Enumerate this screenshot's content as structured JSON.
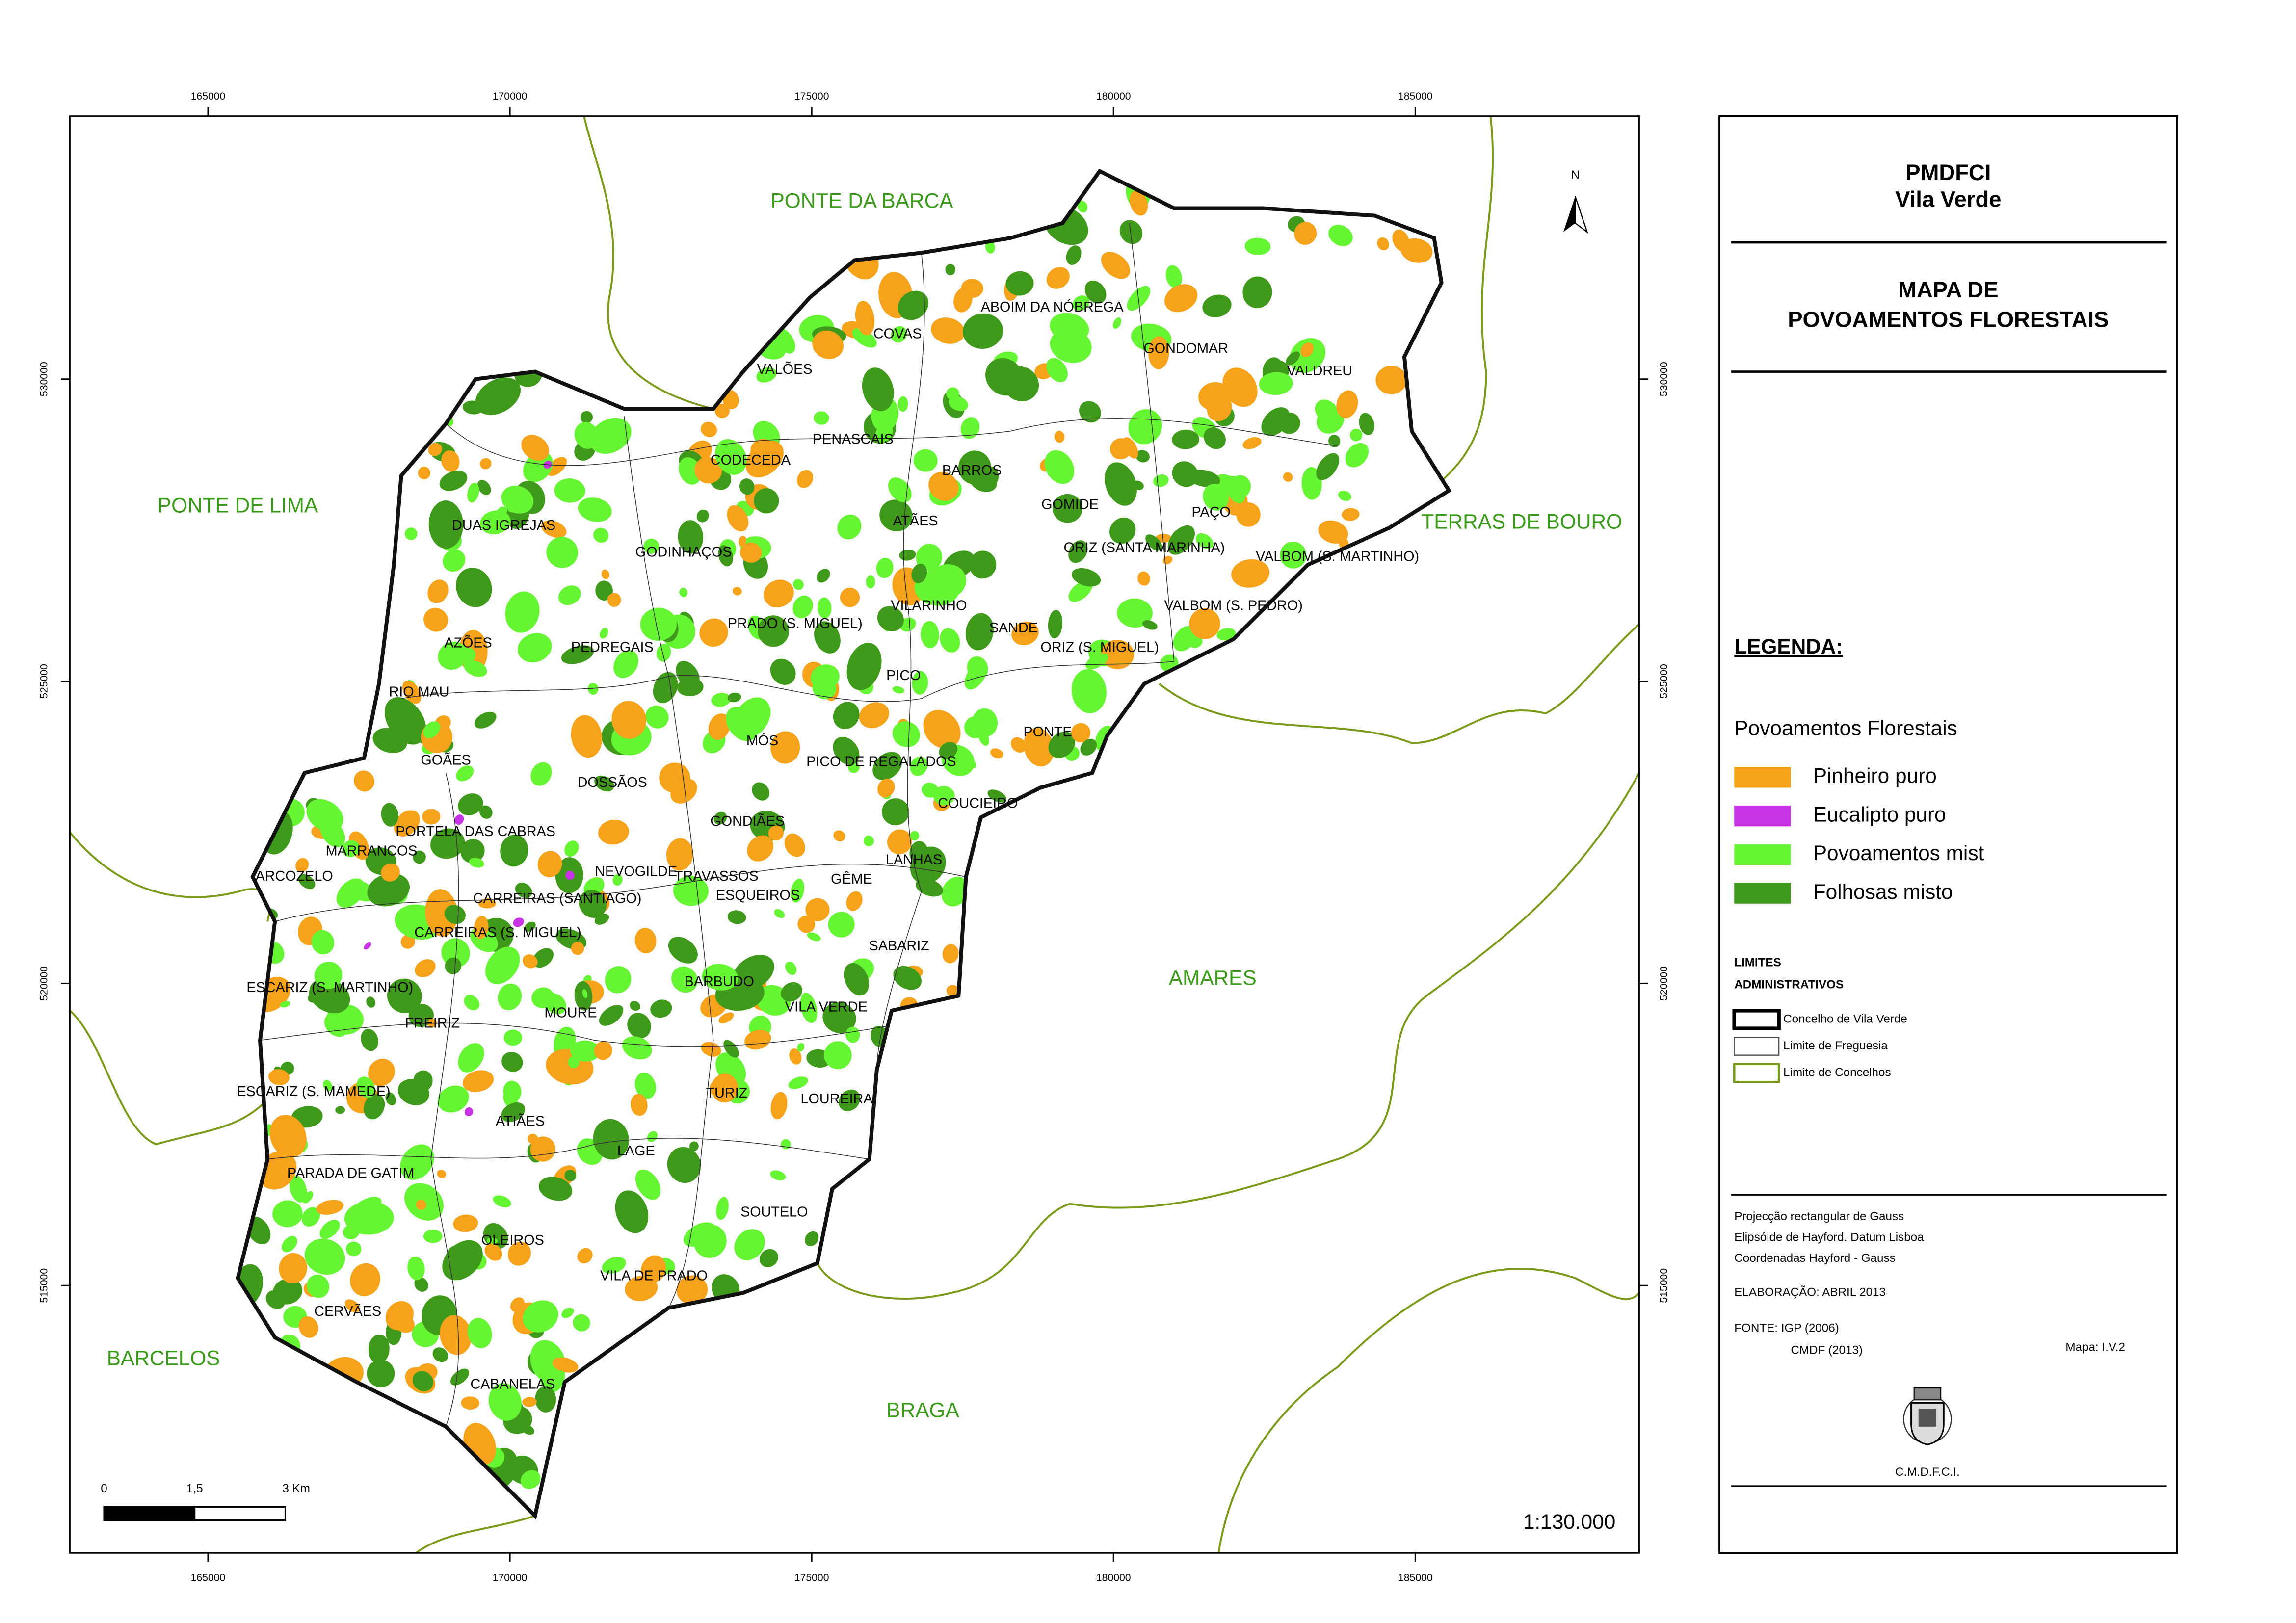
{
  "map": {
    "x_ticks": [
      165000,
      170000,
      175000,
      180000,
      185000
    ],
    "y_ticks": [
      530000,
      525000,
      520000,
      515000
    ],
    "north": "N",
    "neighbors": [
      "PONTE DA BARCA",
      "PONTE DE LIMA",
      "TERRAS DE BOURO",
      "AMARES",
      "BARCELOS",
      "BRAGA"
    ],
    "parishes": [
      "ABOIM DA NÓBREGA",
      "COVAS",
      "VALÕES",
      "GONDOMAR",
      "VALDREU",
      "PENASCAIS",
      "CODECEDA",
      "BARROS",
      "GOMIDE",
      "PAÇO",
      "DUAS IGREJAS",
      "ATÃES",
      "ORIZ (SANTA MARINHA)",
      "VALBOM (S. MARTINHO)",
      "GODINHAÇOS",
      "VILARINHO",
      "VALBOM (S. PEDRO)",
      "PRADO (S. MIGUEL)",
      "SANDE",
      "AZÕES",
      "PEDREGAIS",
      "ORIZ (S. MIGUEL)",
      "PICO",
      "RIO MAU",
      "MÓS",
      "PONTE",
      "GOÃES",
      "PICO DE REGALADOS",
      "DOSSÃOS",
      "COUCIEIRO",
      "GONDIÃES",
      "PORTELA DAS CABRAS",
      "MARRANCOS",
      "NEVOGILDE",
      "LANHAS",
      "TRAVASSOS",
      "GÊME",
      "ARCOZELO",
      "CARREIRAS (SANTIAGO)",
      "ESQUEIROS",
      "SABARIZ",
      "CARREIRAS (S. MIGUEL)",
      "ESCARIZ (S. MARTINHO)",
      "BARBUDO",
      "MOURE",
      "VILA VERDE",
      "FREIRIZ",
      "ESCARIZ (S. MAMEDE)",
      "TURIZ",
      "LOUREIRA",
      "ATIÃES",
      "LAGE",
      "PARADA DE GATIM",
      "SOUTELO",
      "OLEIROS",
      "VILA DE PRADO",
      "CERVÃES",
      "CABANELAS"
    ],
    "scale_bar": [
      "0",
      "1,5",
      "3  Km"
    ],
    "scale": "1:130.000"
  },
  "panel": {
    "header": [
      "PMDFCI",
      "Vila Verde"
    ],
    "title": [
      "MAPA DE",
      "POVOAMENTOS FLORESTAIS"
    ],
    "legend_title": "LEGENDA:",
    "legend_group": "Povoamentos Florestais",
    "legend": [
      {
        "label": "Pinheiro puro",
        "color": "#f7a21b"
      },
      {
        "label": "Eucalipto puro",
        "color": "#c833e6"
      },
      {
        "label": "Povoamentos mist",
        "color": "#66f533"
      },
      {
        "label": "Folhosas misto",
        "color": "#3f9a1c"
      }
    ],
    "limits_title": [
      "LIMITES",
      "ADMINISTRATIVOS"
    ],
    "limits": [
      "Concelho de Vila Verde",
      "Limite de Freguesia",
      "Limite de Concelhos"
    ],
    "projection": [
      "Projecção rectangular de Gauss",
      "Elipsóide de Hayford. Datum Lisboa",
      "Coordenadas Hayford - Gauss"
    ],
    "elaboration": "ELABORAÇÃO: ABRIL 2013",
    "source": [
      "FONTE: IGP (2006)",
      "CMDF (2013)"
    ],
    "map_id": "Mapa: I.V.2",
    "logo_caption": "C.M.D.F.C.I."
  }
}
